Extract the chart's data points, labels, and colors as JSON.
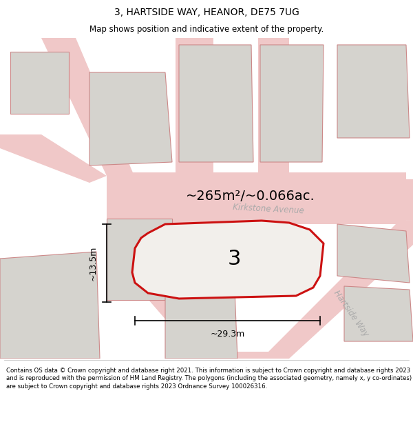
{
  "title": "3, HARTSIDE WAY, HEANOR, DE75 7UG",
  "subtitle": "Map shows position and indicative extent of the property.",
  "footer": "Contains OS data © Crown copyright and database right 2021. This information is subject to Crown copyright and database rights 2023 and is reproduced with the permission of HM Land Registry. The polygons (including the associated geometry, namely x, y co-ordinates) are subject to Crown copyright and database rights 2023 Ordnance Survey 100026316.",
  "map_bg": "#f2efeb",
  "road_color": "#f0c8c8",
  "road_edge": "#e8a8a8",
  "property_fill": "#e8e4de",
  "property_outline": "#cc1111",
  "other_fill": "#d5d3ce",
  "other_outline": "#cc8888",
  "road_outline": "#e8b0b0",
  "area_text": "~265m²/~0.066ac.",
  "label_3": "3",
  "dim_width": "~29.3m",
  "dim_height": "~13.5m",
  "road_label1": "Kirkstone Avenue",
  "road_label2": "Hartside Way",
  "title_fontsize": 10,
  "subtitle_fontsize": 8.5,
  "footer_fontsize": 6.2
}
